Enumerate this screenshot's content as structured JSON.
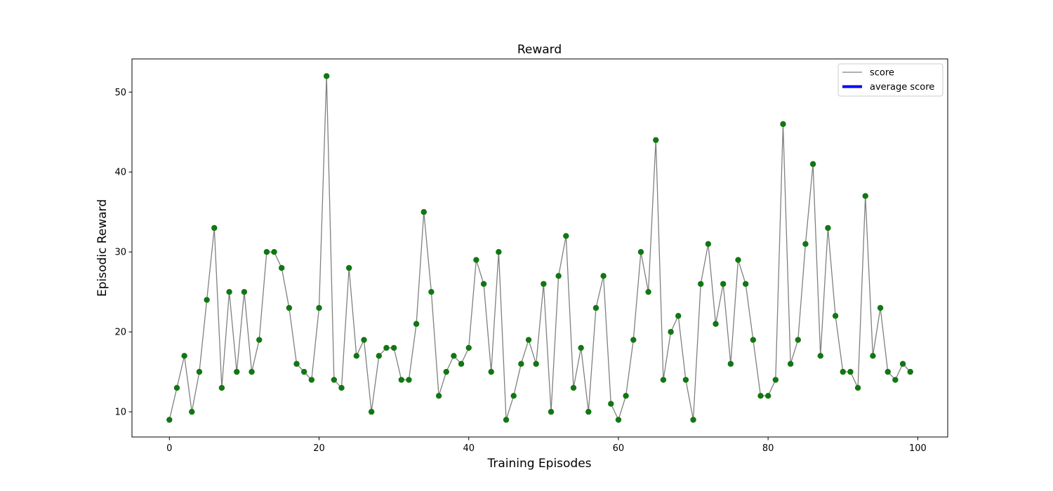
{
  "chart_data": {
    "type": "line",
    "title": "Reward",
    "xlabel": "Training Episodes",
    "ylabel": "Episodic Reward",
    "xlim": [
      -5,
      104
    ],
    "ylim": [
      6.85,
      54.15
    ],
    "xticks": [
      0,
      20,
      40,
      60,
      80,
      100
    ],
    "yticks": [
      10,
      20,
      30,
      40,
      50
    ],
    "grid": false,
    "legend_position": "top-right",
    "series": [
      {
        "name": "score",
        "color": "#808080",
        "marker_color": "#117711",
        "x": [
          0,
          1,
          2,
          3,
          4,
          5,
          6,
          7,
          8,
          9,
          10,
          11,
          12,
          13,
          14,
          15,
          16,
          17,
          18,
          19,
          20,
          21,
          22,
          23,
          24,
          25,
          26,
          27,
          28,
          29,
          30,
          31,
          32,
          33,
          34,
          35,
          36,
          37,
          38,
          39,
          40,
          41,
          42,
          43,
          44,
          45,
          46,
          47,
          48,
          49,
          50,
          51,
          52,
          53,
          54,
          55,
          56,
          57,
          58,
          59,
          60,
          61,
          62,
          63,
          64,
          65,
          66,
          67,
          68,
          69,
          70,
          71,
          72,
          73,
          74,
          75,
          76,
          77,
          78,
          79,
          80,
          81,
          82,
          83,
          84,
          85,
          86,
          87,
          88,
          89,
          90,
          91,
          92,
          93,
          94,
          95,
          96,
          97,
          98,
          99
        ],
        "values": [
          9,
          13,
          17,
          10,
          15,
          24,
          33,
          13,
          25,
          15,
          25,
          15,
          19,
          30,
          30,
          28,
          23,
          16,
          15,
          14,
          23,
          52,
          14,
          13,
          28,
          17,
          19,
          10,
          17,
          18,
          18,
          14,
          14,
          21,
          35,
          25,
          12,
          15,
          17,
          16,
          18,
          29,
          26,
          15,
          30,
          9,
          12,
          16,
          19,
          16,
          26,
          10,
          27,
          32,
          13,
          18,
          10,
          23,
          27,
          11,
          9,
          12,
          19,
          30,
          25,
          44,
          14,
          20,
          22,
          14,
          9,
          26,
          31,
          21,
          26,
          16,
          29,
          26,
          19,
          12,
          12,
          14,
          46,
          16,
          19,
          31,
          41,
          17,
          33,
          22,
          15,
          15,
          13,
          37,
          17,
          23,
          15,
          14,
          16,
          15
        ]
      },
      {
        "name": "average score",
        "color": "#0000ff",
        "values": []
      }
    ]
  }
}
